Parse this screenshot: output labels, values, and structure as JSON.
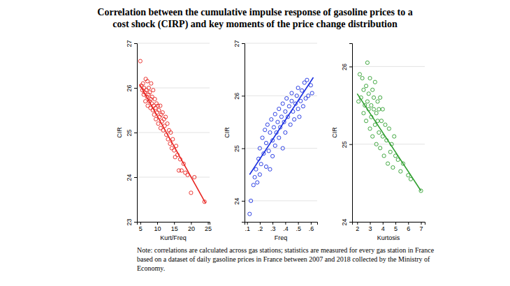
{
  "title": [
    "Correlation between the cumulative impulse response of gasoline prices to a",
    "cost shock (CIRP) and key moments of the price change distribution"
  ],
  "note": [
    "Note: correlations are calculated across gas stations; statistics are measured for every gas station in France",
    "based on a dataset of daily gasoline prices in France between 2007 and 2018 collected by the Ministry of",
    "Economy."
  ],
  "chart_data": [
    {
      "type": "scatter",
      "xlabel": "Kurt/Freq",
      "ylabel": "CIR",
      "xlim": [
        4,
        25.5
      ],
      "ylim": [
        23,
        27
      ],
      "xticks": [
        5,
        10,
        15,
        20,
        25
      ],
      "yticks": [
        23,
        24,
        25,
        26,
        27
      ],
      "grid": true,
      "series": [
        {
          "type": "scatter",
          "marker": "circle",
          "color": "#e8231f",
          "x": [
            5.0,
            5.3,
            5.6,
            5.8,
            6.0,
            6.1,
            6.3,
            6.5,
            6.6,
            6.8,
            7.0,
            7.1,
            7.2,
            7.4,
            7.5,
            7.7,
            7.8,
            8.0,
            8.1,
            8.2,
            8.4,
            8.5,
            8.7,
            8.8,
            9.0,
            9.1,
            9.3,
            9.5,
            9.6,
            9.8,
            10.0,
            10.2,
            10.3,
            10.5,
            10.7,
            10.9,
            11.0,
            11.2,
            11.4,
            11.6,
            11.8,
            12.0,
            12.2,
            12.5,
            12.7,
            13.0,
            13.2,
            13.5,
            13.8,
            14.0,
            14.3,
            14.6,
            15.0,
            15.3,
            15.6,
            16.0,
            16.4,
            16.8,
            17.2,
            17.8,
            18.3,
            19.0,
            20.0,
            21.0,
            24.0
          ],
          "values": [
            26.6,
            26.05,
            25.95,
            26.1,
            25.85,
            26.0,
            25.9,
            25.7,
            26.2,
            25.95,
            25.8,
            26.15,
            25.6,
            25.85,
            26.0,
            25.7,
            25.9,
            25.55,
            25.75,
            26.1,
            25.65,
            25.8,
            25.5,
            25.95,
            25.6,
            25.4,
            25.75,
            25.55,
            25.3,
            25.65,
            25.45,
            25.6,
            25.2,
            25.5,
            25.35,
            25.6,
            25.1,
            25.4,
            25.25,
            25.45,
            25.05,
            25.3,
            25.15,
            25.35,
            24.95,
            25.2,
            24.85,
            25.05,
            24.75,
            25.0,
            24.65,
            24.85,
            24.6,
            24.45,
            24.7,
            24.5,
            24.15,
            24.4,
            24.15,
            24.3,
            24.1,
            24.05,
            23.65,
            24.0,
            23.45
          ]
        },
        {
          "type": "line",
          "color": "#e8231f",
          "x": [
            4.8,
            24.3
          ],
          "values": [
            26.08,
            23.42
          ]
        }
      ]
    },
    {
      "type": "scatter",
      "xlabel": "Freq",
      "ylabel": "CIR",
      "xlim": [
        0.08,
        0.65
      ],
      "ylim": [
        23.6,
        27
      ],
      "xticks": [
        {
          "value": 0.1,
          "label": ".1"
        },
        {
          "value": 0.2,
          "label": ".2"
        },
        {
          "value": 0.3,
          "label": ".3"
        },
        {
          "value": 0.4,
          "label": ".4"
        },
        {
          "value": 0.5,
          "label": ".5"
        },
        {
          "value": 0.6,
          "label": ".6"
        }
      ],
      "yticks": [
        24,
        25,
        26,
        27
      ],
      "grid": true,
      "series": [
        {
          "type": "scatter",
          "marker": "circle",
          "color": "#1a2fe0",
          "x": [
            0.12,
            0.13,
            0.15,
            0.16,
            0.17,
            0.18,
            0.19,
            0.2,
            0.2,
            0.21,
            0.22,
            0.23,
            0.24,
            0.25,
            0.25,
            0.26,
            0.27,
            0.28,
            0.28,
            0.29,
            0.3,
            0.3,
            0.31,
            0.32,
            0.32,
            0.33,
            0.34,
            0.35,
            0.35,
            0.36,
            0.37,
            0.38,
            0.38,
            0.39,
            0.4,
            0.4,
            0.41,
            0.42,
            0.43,
            0.44,
            0.45,
            0.45,
            0.46,
            0.47,
            0.48,
            0.49,
            0.5,
            0.5,
            0.51,
            0.52,
            0.53,
            0.54,
            0.55,
            0.56,
            0.57,
            0.58,
            0.6,
            0.61
          ],
          "values": [
            23.75,
            24.0,
            24.3,
            24.45,
            24.6,
            24.35,
            24.8,
            24.5,
            25.0,
            24.7,
            25.2,
            24.9,
            25.35,
            24.65,
            25.1,
            25.45,
            24.95,
            25.3,
            24.6,
            25.55,
            25.15,
            24.85,
            25.4,
            25.65,
            25.05,
            25.3,
            25.5,
            25.2,
            25.75,
            25.4,
            25.6,
            25.0,
            25.85,
            25.5,
            25.7,
            25.3,
            25.95,
            25.6,
            25.8,
            25.45,
            25.9,
            26.05,
            25.7,
            25.55,
            25.85,
            26.0,
            25.75,
            26.15,
            25.6,
            25.9,
            26.1,
            25.8,
            26.25,
            25.95,
            26.3,
            26.0,
            26.2,
            26.05
          ]
        },
        {
          "type": "line",
          "color": "#1a2fe0",
          "x": [
            0.12,
            0.62
          ],
          "values": [
            24.5,
            26.35
          ]
        }
      ]
    },
    {
      "type": "scatter",
      "xlabel": "Kurtosis",
      "ylabel": "CIR",
      "xlim": [
        1.6,
        7.3
      ],
      "ylim": [
        24,
        26.3
      ],
      "xticks": [
        2,
        3,
        4,
        5,
        6,
        7
      ],
      "yticks": [
        24,
        25,
        26
      ],
      "grid": true,
      "series": [
        {
          "type": "scatter",
          "marker": "circle",
          "color": "#2e9e2e",
          "x": [
            2.1,
            2.2,
            2.3,
            2.4,
            2.5,
            2.5,
            2.6,
            2.7,
            2.7,
            2.8,
            2.8,
            2.9,
            2.9,
            3.0,
            3.0,
            3.1,
            3.1,
            3.2,
            3.2,
            3.3,
            3.3,
            3.4,
            3.4,
            3.5,
            3.5,
            3.6,
            3.6,
            3.7,
            3.7,
            3.8,
            3.8,
            3.9,
            4.0,
            4.0,
            4.1,
            4.2,
            4.3,
            4.4,
            4.5,
            4.6,
            4.7,
            4.8,
            4.9,
            5.0,
            5.2,
            5.4,
            5.6,
            6.0,
            6.2,
            7.0
          ],
          "values": [
            25.55,
            25.9,
            25.6,
            25.85,
            25.4,
            25.7,
            25.5,
            25.3,
            25.75,
            25.55,
            26.05,
            25.45,
            25.65,
            25.2,
            25.85,
            25.5,
            25.35,
            25.7,
            25.1,
            25.45,
            25.6,
            25.25,
            25.8,
            25.4,
            25.0,
            25.55,
            25.3,
            25.15,
            25.45,
            25.6,
            24.95,
            25.3,
            25.1,
            25.45,
            24.85,
            25.25,
            25.05,
            24.75,
            25.2,
            24.9,
            25.0,
            24.7,
            25.1,
            24.85,
            24.8,
            24.65,
            24.75,
            24.6,
            24.55,
            24.4
          ]
        },
        {
          "type": "line",
          "color": "#2e9e2e",
          "x": [
            2.0,
            7.0
          ],
          "values": [
            25.65,
            24.4
          ]
        }
      ]
    }
  ]
}
